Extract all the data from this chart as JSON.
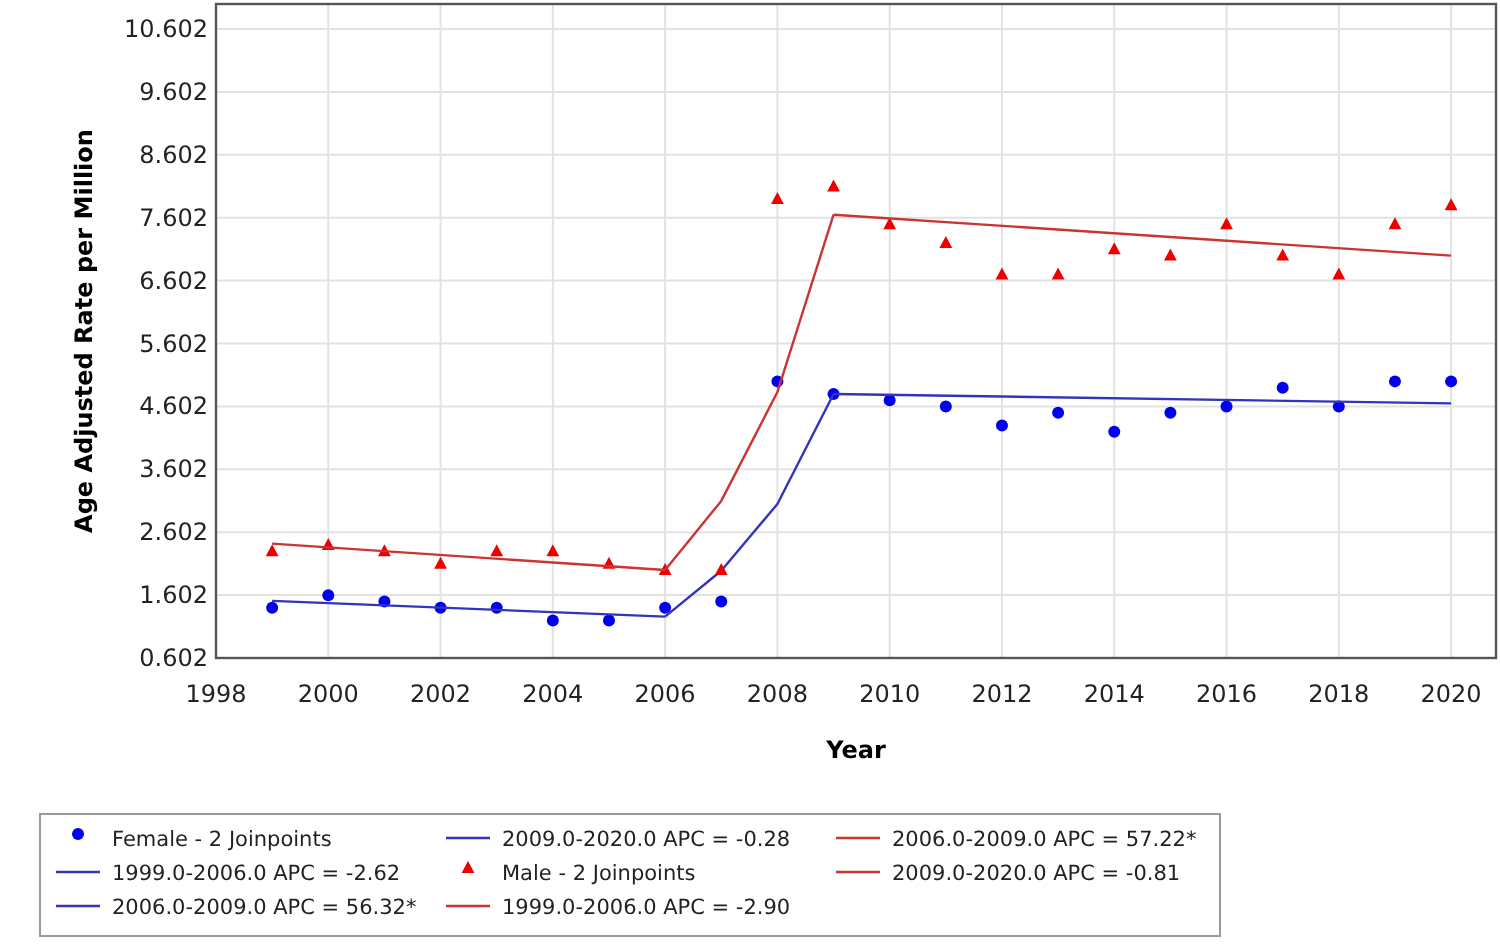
{
  "chart_data": {
    "type": "scatter",
    "xlabel": "Year",
    "ylabel": "Age Adjusted Rate per Million",
    "xlim": [
      1998,
      2020.8
    ],
    "xticks": [
      1998,
      2000,
      2002,
      2004,
      2006,
      2008,
      2010,
      2012,
      2014,
      2016,
      2018,
      2020
    ],
    "ylim": [
      0.602,
      11.0
    ],
    "yticks": [
      0.602,
      1.602,
      2.602,
      3.602,
      4.602,
      5.602,
      6.602,
      7.602,
      8.602,
      9.602,
      10.602
    ],
    "grid": true,
    "legend": "bottom",
    "series": [
      {
        "name": "Female - 2 Joinpoints",
        "marker": "circle",
        "color": "#0000ee",
        "x": [
          1999,
          2000,
          2001,
          2002,
          2003,
          2004,
          2005,
          2006,
          2007,
          2008,
          2009,
          2010,
          2011,
          2012,
          2013,
          2014,
          2015,
          2016,
          2017,
          2018,
          2019,
          2020
        ],
        "values": [
          1.4,
          1.6,
          1.5,
          1.4,
          1.4,
          1.2,
          1.2,
          1.4,
          1.5,
          5.0,
          4.8,
          4.7,
          4.6,
          4.3,
          4.5,
          4.2,
          4.5,
          4.6,
          4.9,
          4.6,
          5.0,
          5.0
        ]
      },
      {
        "name": "1999.0-2006.0 APC = -2.62",
        "type": "line",
        "marker": "none",
        "color": "#3333bb",
        "x": [
          1999,
          2006
        ],
        "values": [
          1.51,
          1.26
        ]
      },
      {
        "name": "2006.0-2009.0 APC = 56.32*",
        "type": "line",
        "marker": "none",
        "color": "#3333bb",
        "x": [
          2006,
          2007,
          2008,
          2009
        ],
        "values": [
          1.26,
          1.99,
          3.05,
          4.8
        ]
      },
      {
        "name": "2009.0-2020.0 APC = -0.28",
        "type": "line",
        "marker": "none",
        "color": "#3333bb",
        "x": [
          2009,
          2020
        ],
        "values": [
          4.8,
          4.65
        ]
      },
      {
        "name": "Male - 2 Joinpoints",
        "marker": "triangle",
        "color": "#ee0000",
        "x": [
          1999,
          2000,
          2001,
          2002,
          2003,
          2004,
          2005,
          2006,
          2007,
          2008,
          2009,
          2010,
          2011,
          2012,
          2013,
          2014,
          2015,
          2016,
          2017,
          2018,
          2019,
          2020
        ],
        "values": [
          2.3,
          2.4,
          2.3,
          2.1,
          2.3,
          2.3,
          2.1,
          2.0,
          2.0,
          7.9,
          8.1,
          7.5,
          7.2,
          6.7,
          6.7,
          7.1,
          7.0,
          7.5,
          7.0,
          6.7,
          7.5,
          7.8
        ]
      },
      {
        "name": "1999.0-2006.0 APC = -2.90",
        "type": "line",
        "marker": "none",
        "color": "#cc3333",
        "x": [
          1999,
          2006
        ],
        "values": [
          2.42,
          2.0
        ]
      },
      {
        "name": "2006.0-2009.0 APC = 57.22*",
        "type": "line",
        "marker": "none",
        "color": "#cc3333",
        "x": [
          2006,
          2007,
          2008,
          2009
        ],
        "values": [
          2.0,
          3.1,
          4.83,
          7.65
        ]
      },
      {
        "name": "2009.0-2020.0 APC = -0.81",
        "type": "line",
        "marker": "none",
        "color": "#cc3333",
        "x": [
          2009,
          2020
        ],
        "values": [
          7.65,
          7.0
        ]
      }
    ]
  }
}
